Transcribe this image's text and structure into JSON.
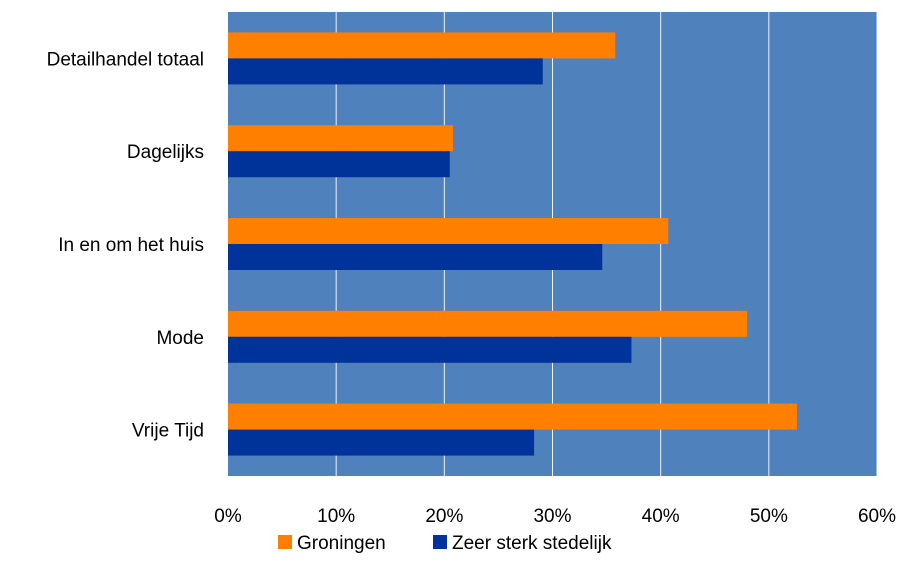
{
  "chart_data": {
    "type": "bar",
    "orientation": "horizontal",
    "categories": [
      "Detailhandel totaal",
      "Dagelijks",
      "In en om het huis",
      "Mode",
      "Vrije Tijd"
    ],
    "series": [
      {
        "name": "Groningen",
        "values": [
          35.8,
          20.8,
          40.7,
          48.0,
          52.6
        ]
      },
      {
        "name": "Zeer sterk stedelijk",
        "values": [
          29.1,
          20.5,
          34.6,
          37.3,
          28.3
        ]
      }
    ],
    "xlim": [
      0,
      60
    ],
    "xticks": [
      0,
      10,
      20,
      30,
      40,
      50,
      60
    ],
    "xtick_labels": [
      "0%",
      "10%",
      "20%",
      "30%",
      "40%",
      "50%",
      "60%"
    ],
    "grid": "vertical",
    "legend": "bottom",
    "colors": {
      "plot_background": "#4f81bd",
      "gridline": "#ffffff",
      "series": [
        "#ff8000",
        "#003399"
      ]
    }
  }
}
